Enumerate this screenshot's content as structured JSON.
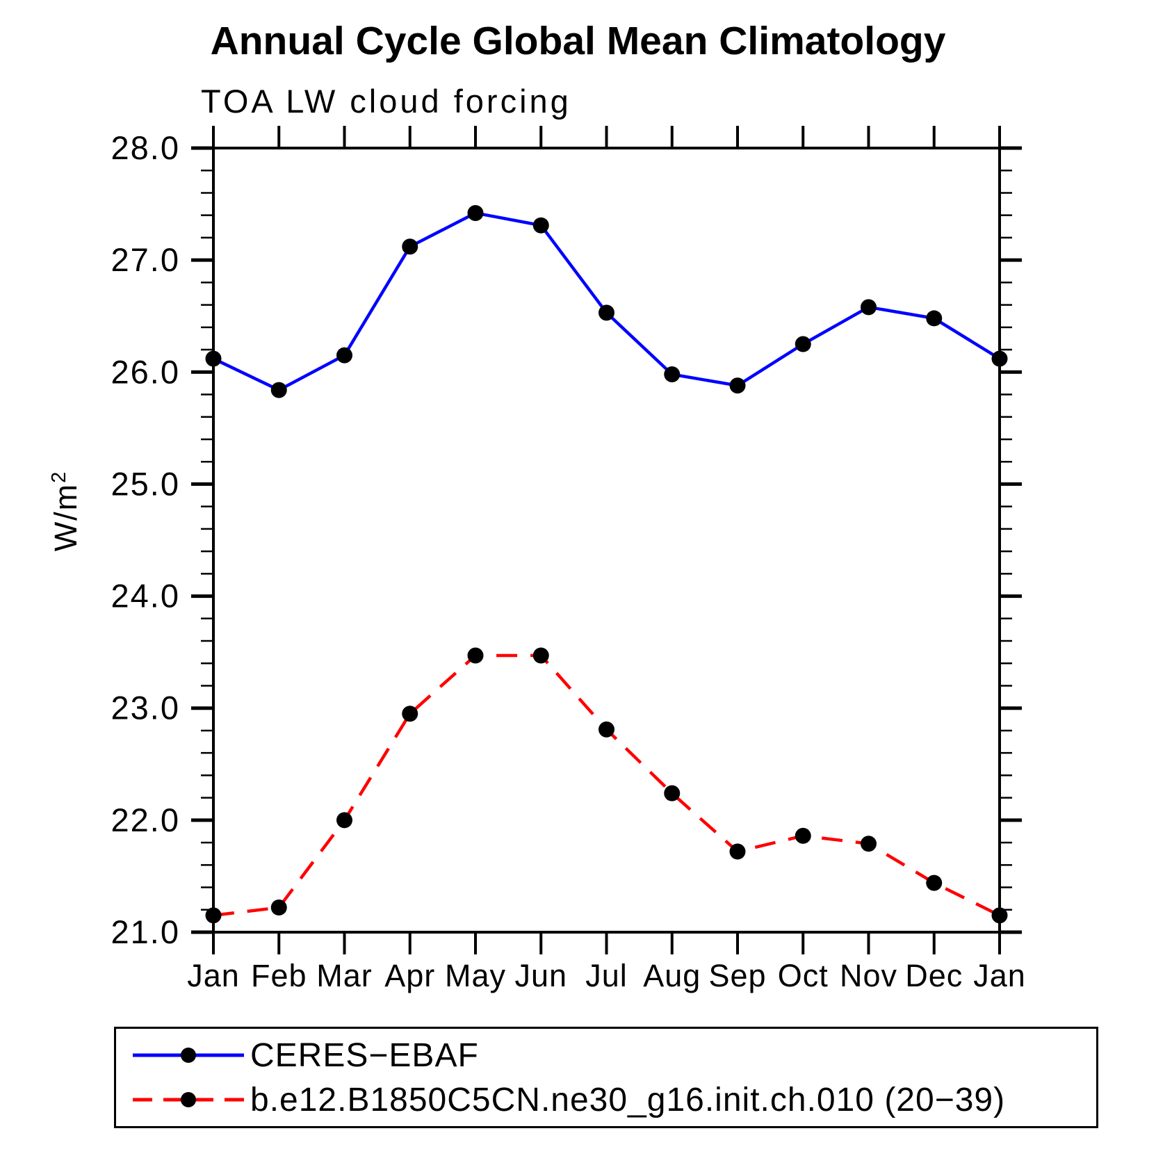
{
  "title": "Annual Cycle Global Mean Climatology",
  "subtitle": "TOA LW cloud forcing",
  "ylabel_base": "W/m",
  "ylabel_exp": "2",
  "chart_data": {
    "type": "line",
    "categories": [
      "Jan",
      "Feb",
      "Mar",
      "Apr",
      "May",
      "Jun",
      "Jul",
      "Aug",
      "Sep",
      "Oct",
      "Nov",
      "Dec",
      "Jan"
    ],
    "series": [
      {
        "name": "CERES−EBAF",
        "color": "#0000ff",
        "line_style": "solid",
        "marker": "filled-circle",
        "marker_color": "#000000",
        "values": [
          26.12,
          25.84,
          26.15,
          27.12,
          27.42,
          27.31,
          26.53,
          25.98,
          25.88,
          26.25,
          26.58,
          26.48,
          26.12
        ]
      },
      {
        "name": "b.e12.B1850C5CN.ne30_g16.init.ch.010 (20−39)",
        "color": "#ff0000",
        "line_style": "dashed",
        "marker": "filled-circle",
        "marker_color": "#000000",
        "values": [
          21.15,
          21.22,
          22.0,
          22.95,
          23.47,
          23.47,
          22.81,
          22.24,
          21.72,
          21.86,
          21.79,
          21.44,
          21.15
        ]
      }
    ],
    "ylim": [
      21.0,
      28.0
    ],
    "y_major_step": 1.0,
    "y_minor_step": 0.2,
    "y_tick_labels": [
      "21.0",
      "22.0",
      "23.0",
      "24.0",
      "25.0",
      "26.0",
      "27.0",
      "28.0"
    ],
    "xlabel": "",
    "ylabel": "W/m2",
    "grid": false,
    "frame": true,
    "legend_position": "bottom-left-box"
  }
}
